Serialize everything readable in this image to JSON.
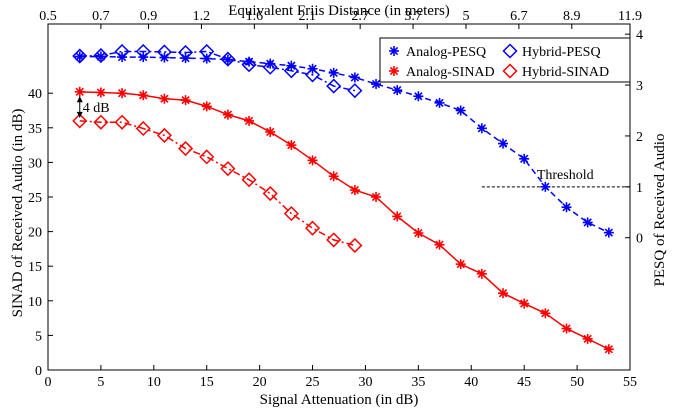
{
  "chart_data": {
    "type": "line",
    "top_axis": {
      "label": "Equivalent Friis Distance (in meters)",
      "tick_labels": [
        "0.5",
        "0.7",
        "0.9",
        "1.2",
        "1.6",
        "2.1",
        "2.7",
        "3.7",
        "5",
        "6.7",
        "8.9",
        "11.9"
      ],
      "tick_positions_x": [
        0,
        5,
        9.5,
        14.5,
        19.5,
        24.5,
        29.5,
        34.5,
        39.5,
        44.5,
        49.5,
        55
      ]
    },
    "x_axis": {
      "label": "Signal Attenuation (in dB)",
      "range": [
        0,
        55
      ],
      "ticks": [
        0,
        5,
        10,
        15,
        20,
        25,
        30,
        35,
        40,
        45,
        50,
        55
      ]
    },
    "y_left": {
      "label": "SINAD of Received Audio (in dB)",
      "range": [
        0,
        50
      ],
      "ticks": [
        0,
        5,
        10,
        15,
        20,
        25,
        30,
        35,
        40
      ]
    },
    "y_right": {
      "label": "PESQ of Received Audio",
      "range": [
        -2.6,
        4.2
      ],
      "ticks": [
        0,
        1,
        2,
        3,
        4
      ]
    },
    "legend_position": "top-right",
    "annotations": [
      {
        "text": "4 dB",
        "x": 3,
        "y_from": 36,
        "y_to": 40
      },
      {
        "text": "Threshold",
        "axis": "right",
        "value": 1,
        "x_range": [
          41,
          55
        ]
      }
    ],
    "series": [
      {
        "name": "Analog-PESQ",
        "axis": "right",
        "color": "#0000ff",
        "marker": "star",
        "line": "dashed",
        "x": [
          3,
          5,
          7,
          9,
          11,
          13,
          15,
          17,
          19,
          21,
          23,
          25,
          27,
          29,
          31,
          33,
          35,
          37,
          39,
          41,
          43,
          45,
          47,
          49,
          51,
          53
        ],
        "y": [
          3.56,
          3.56,
          3.55,
          3.55,
          3.54,
          3.53,
          3.52,
          3.5,
          3.46,
          3.42,
          3.38,
          3.32,
          3.24,
          3.15,
          3.02,
          2.9,
          2.78,
          2.65,
          2.5,
          2.15,
          1.85,
          1.55,
          1.0,
          0.6,
          0.3,
          0.1
        ]
      },
      {
        "name": "Hybrid-PESQ",
        "axis": "right",
        "color": "#0000ff",
        "marker": "diamond",
        "line": "dashdot",
        "x": [
          3,
          5,
          7,
          9,
          11,
          13,
          15,
          17,
          19,
          21,
          23,
          25,
          27,
          29
        ],
        "y": [
          3.57,
          3.58,
          3.66,
          3.66,
          3.65,
          3.64,
          3.66,
          3.51,
          3.4,
          3.35,
          3.28,
          3.2,
          2.98,
          2.89
        ]
      },
      {
        "name": "Analog-SINAD",
        "axis": "left",
        "color": "#ff0000",
        "marker": "star",
        "line": "solid",
        "x": [
          3,
          5,
          7,
          9,
          11,
          13,
          15,
          17,
          19,
          21,
          23,
          25,
          27,
          29,
          31,
          33,
          35,
          37,
          39,
          41,
          43,
          45,
          47,
          49,
          51,
          53
        ],
        "y": [
          40.2,
          40.1,
          40.0,
          39.7,
          39.2,
          39.0,
          38.1,
          36.9,
          36.0,
          34.4,
          32.5,
          30.3,
          28.0,
          26.0,
          25.0,
          22.2,
          19.8,
          18.1,
          15.3,
          13.9,
          11.1,
          9.6,
          8.2,
          6.0,
          4.5,
          3.0
        ]
      },
      {
        "name": "Hybrid-SINAD",
        "axis": "left",
        "color": "#ff0000",
        "marker": "diamond",
        "line": "dashdot",
        "x": [
          3,
          5,
          7,
          9,
          11,
          13,
          15,
          17,
          19,
          21,
          23,
          25,
          27,
          29
        ],
        "y": [
          36.0,
          35.8,
          35.8,
          34.9,
          33.9,
          32.0,
          30.8,
          29.1,
          27.5,
          25.5,
          22.6,
          20.5,
          18.8,
          18.0
        ]
      }
    ]
  }
}
